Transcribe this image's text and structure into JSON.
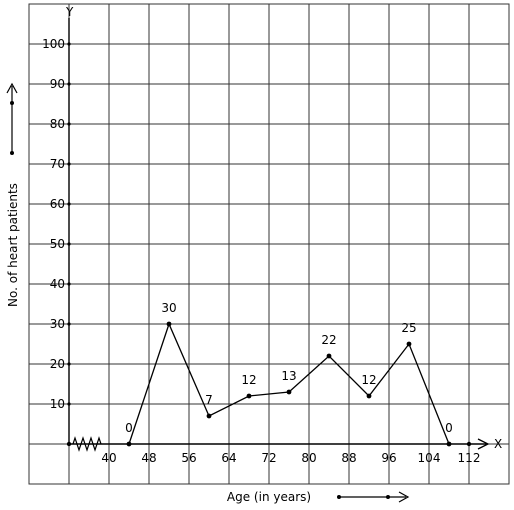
{
  "chart_data": {
    "type": "line",
    "xlabel": "Age (in years)",
    "ylabel": "No. of heart patients",
    "x_axis_letter": "X",
    "y_axis_letter": "Y",
    "x": [
      44,
      52,
      60,
      68,
      76,
      84,
      92,
      100,
      108
    ],
    "values": [
      0,
      30,
      7,
      12,
      13,
      22,
      12,
      25,
      0
    ],
    "data_labels": [
      "0",
      "30",
      "7",
      "12",
      "13",
      "22",
      "12",
      "25",
      "0"
    ],
    "x_ticks": [
      40,
      48,
      56,
      64,
      72,
      80,
      88,
      96,
      104,
      112
    ],
    "x_tick_labels": [
      "40",
      "48",
      "56",
      "64",
      "72",
      "80",
      "88",
      "96",
      "104",
      "112"
    ],
    "y_ticks": [
      10,
      20,
      30,
      40,
      50,
      60,
      70,
      80,
      90,
      100
    ],
    "y_tick_labels": [
      "10",
      "20",
      "30",
      "40",
      "50",
      "60",
      "70",
      "80",
      "90",
      "100"
    ],
    "xlim": [
      32,
      116
    ],
    "ylim": [
      -10,
      110
    ],
    "x_axis_break": true,
    "grid": true
  }
}
